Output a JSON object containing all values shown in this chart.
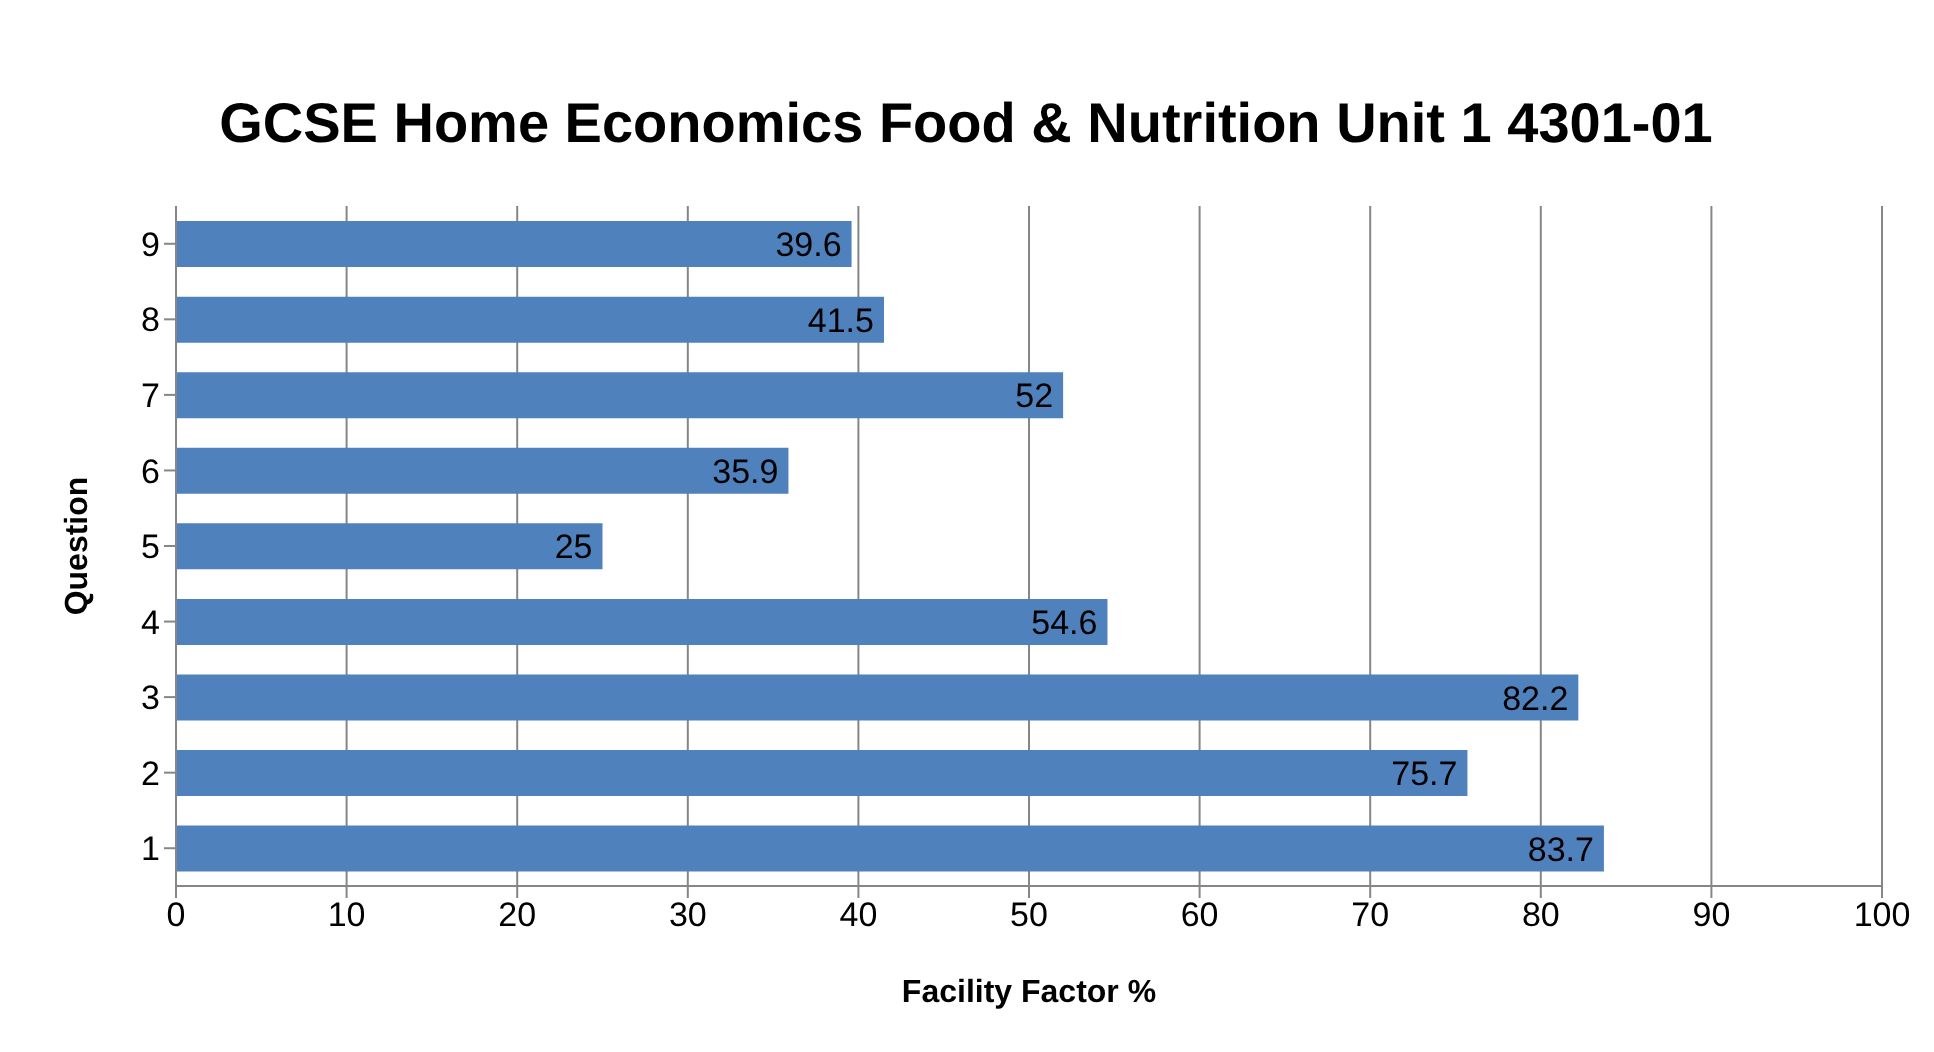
{
  "chart_data": {
    "type": "bar",
    "orientation": "horizontal",
    "title": "GCSE Home Economics Food & Nutrition Unit 1 4301-01",
    "xlabel": "Facility Factor %",
    "ylabel": "Question",
    "categories": [
      "9",
      "8",
      "7",
      "6",
      "5",
      "4",
      "3",
      "2",
      "1"
    ],
    "values": [
      39.6,
      41.5,
      52,
      35.9,
      25,
      54.6,
      82.2,
      75.7,
      83.7
    ],
    "color": "#4f81bd",
    "xlim": [
      0,
      100
    ],
    "xticks": [
      0,
      10,
      20,
      30,
      40,
      50,
      60,
      70,
      80,
      90,
      100
    ],
    "grid": "x",
    "data_labels": true
  }
}
